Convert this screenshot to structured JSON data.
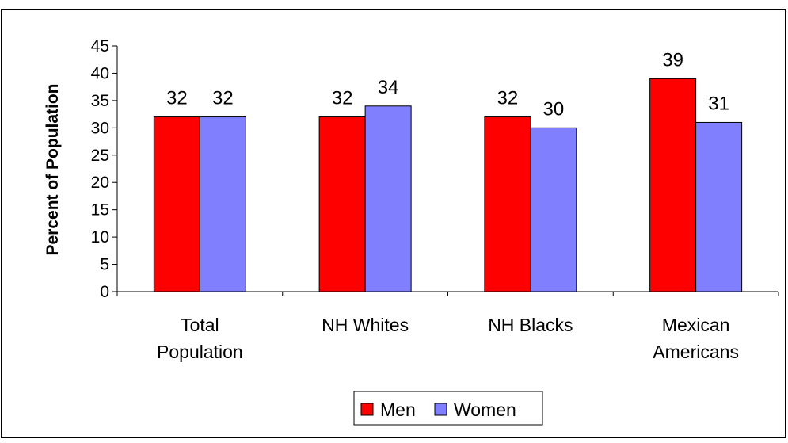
{
  "colors": {
    "men": "#ff0000",
    "women": "#8080ff",
    "background": "#ffffff",
    "frame": "#000000"
  },
  "chart_data": {
    "type": "bar",
    "title": "",
    "xlabel": "",
    "ylabel": "Percent of Population",
    "ylim": [
      0,
      45
    ],
    "yticks": [
      "0",
      "5",
      "10",
      "15",
      "20",
      "25",
      "30",
      "35",
      "40",
      "45"
    ],
    "grid": false,
    "legend_position": "bottom",
    "categories": [
      [
        "Total",
        "Population"
      ],
      [
        "NH Whites"
      ],
      [
        "NH Blacks"
      ],
      [
        "Mexican",
        "Americans"
      ]
    ],
    "series": [
      {
        "name": "Men",
        "values": [
          32,
          32,
          32,
          39
        ],
        "labels": [
          "32",
          "32",
          "32",
          "39"
        ]
      },
      {
        "name": "Women",
        "values": [
          32,
          34,
          30,
          31
        ],
        "labels": [
          "32",
          "34",
          "30",
          "31"
        ]
      }
    ]
  }
}
